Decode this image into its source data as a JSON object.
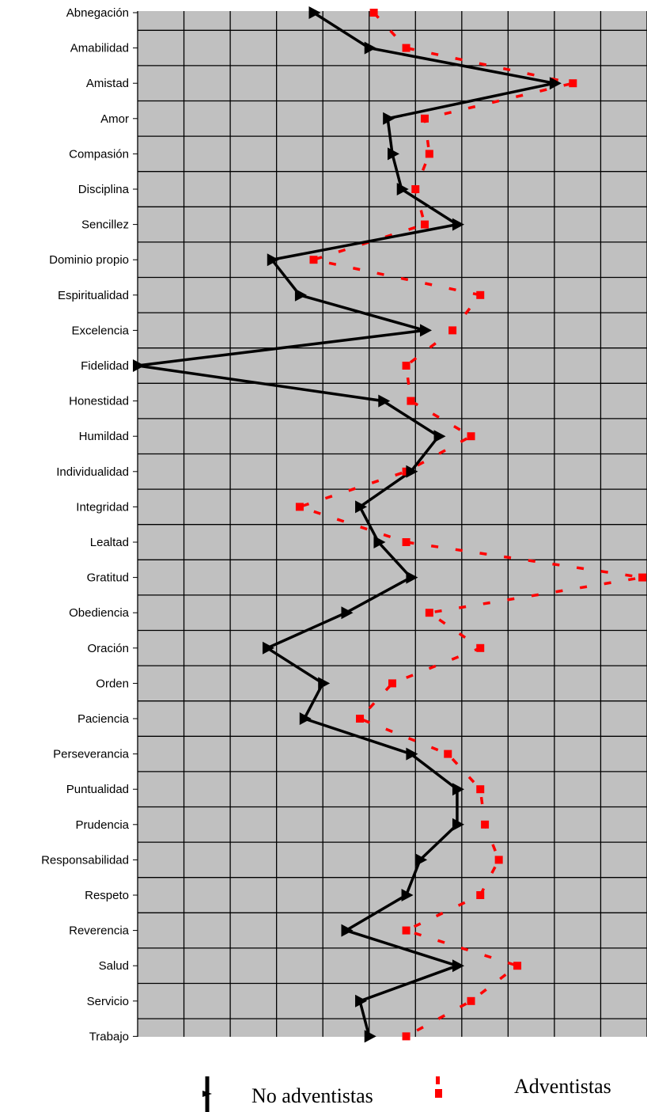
{
  "chart_data": {
    "type": "line",
    "title": "",
    "xlabel": "",
    "ylabel": "",
    "categories": [
      "Abnegación",
      "Amabilidad",
      "Amistad",
      "Amor",
      "Compasión",
      "Disciplina",
      "Sencillez",
      "Dominio propio",
      "Espiritualidad",
      "Excelencia",
      "Fidelidad",
      "Honestidad",
      "Humildad",
      "Individualidad",
      "Integridad",
      "Lealtad",
      "Gratitud",
      "Obediencia",
      "Oración",
      "Orden",
      "Paciencia",
      "Perseverancia",
      "Puntualidad",
      "Prudencia",
      "Responsabilidad",
      "Respeto",
      "Reverencia",
      "Salud",
      "Servicio",
      "Trabajo"
    ],
    "series": [
      {
        "name": "No adventistas",
        "color": "#000000",
        "style": "solid-arrow",
        "values": [
          3.8,
          5.0,
          9.0,
          5.4,
          5.5,
          5.7,
          6.9,
          2.9,
          3.5,
          6.2,
          0.0,
          5.3,
          6.5,
          5.9,
          4.8,
          5.2,
          5.9,
          4.5,
          2.8,
          4.0,
          3.6,
          5.9,
          6.9,
          6.9,
          6.1,
          5.8,
          4.5,
          6.9,
          4.8,
          5.0
        ]
      },
      {
        "name": "Adventistas",
        "color": "#ff0000",
        "style": "dashed",
        "values": [
          5.1,
          5.8,
          9.4,
          6.2,
          6.3,
          6.0,
          6.2,
          3.8,
          7.4,
          6.8,
          5.8,
          5.9,
          7.2,
          5.8,
          3.5,
          5.8,
          10.9,
          6.3,
          7.4,
          5.5,
          4.8,
          6.7,
          7.4,
          7.5,
          7.8,
          7.4,
          5.8,
          8.2,
          7.2,
          5.8
        ]
      }
    ],
    "xlim": [
      0,
      11
    ],
    "grid": true,
    "legend": "bottom"
  }
}
